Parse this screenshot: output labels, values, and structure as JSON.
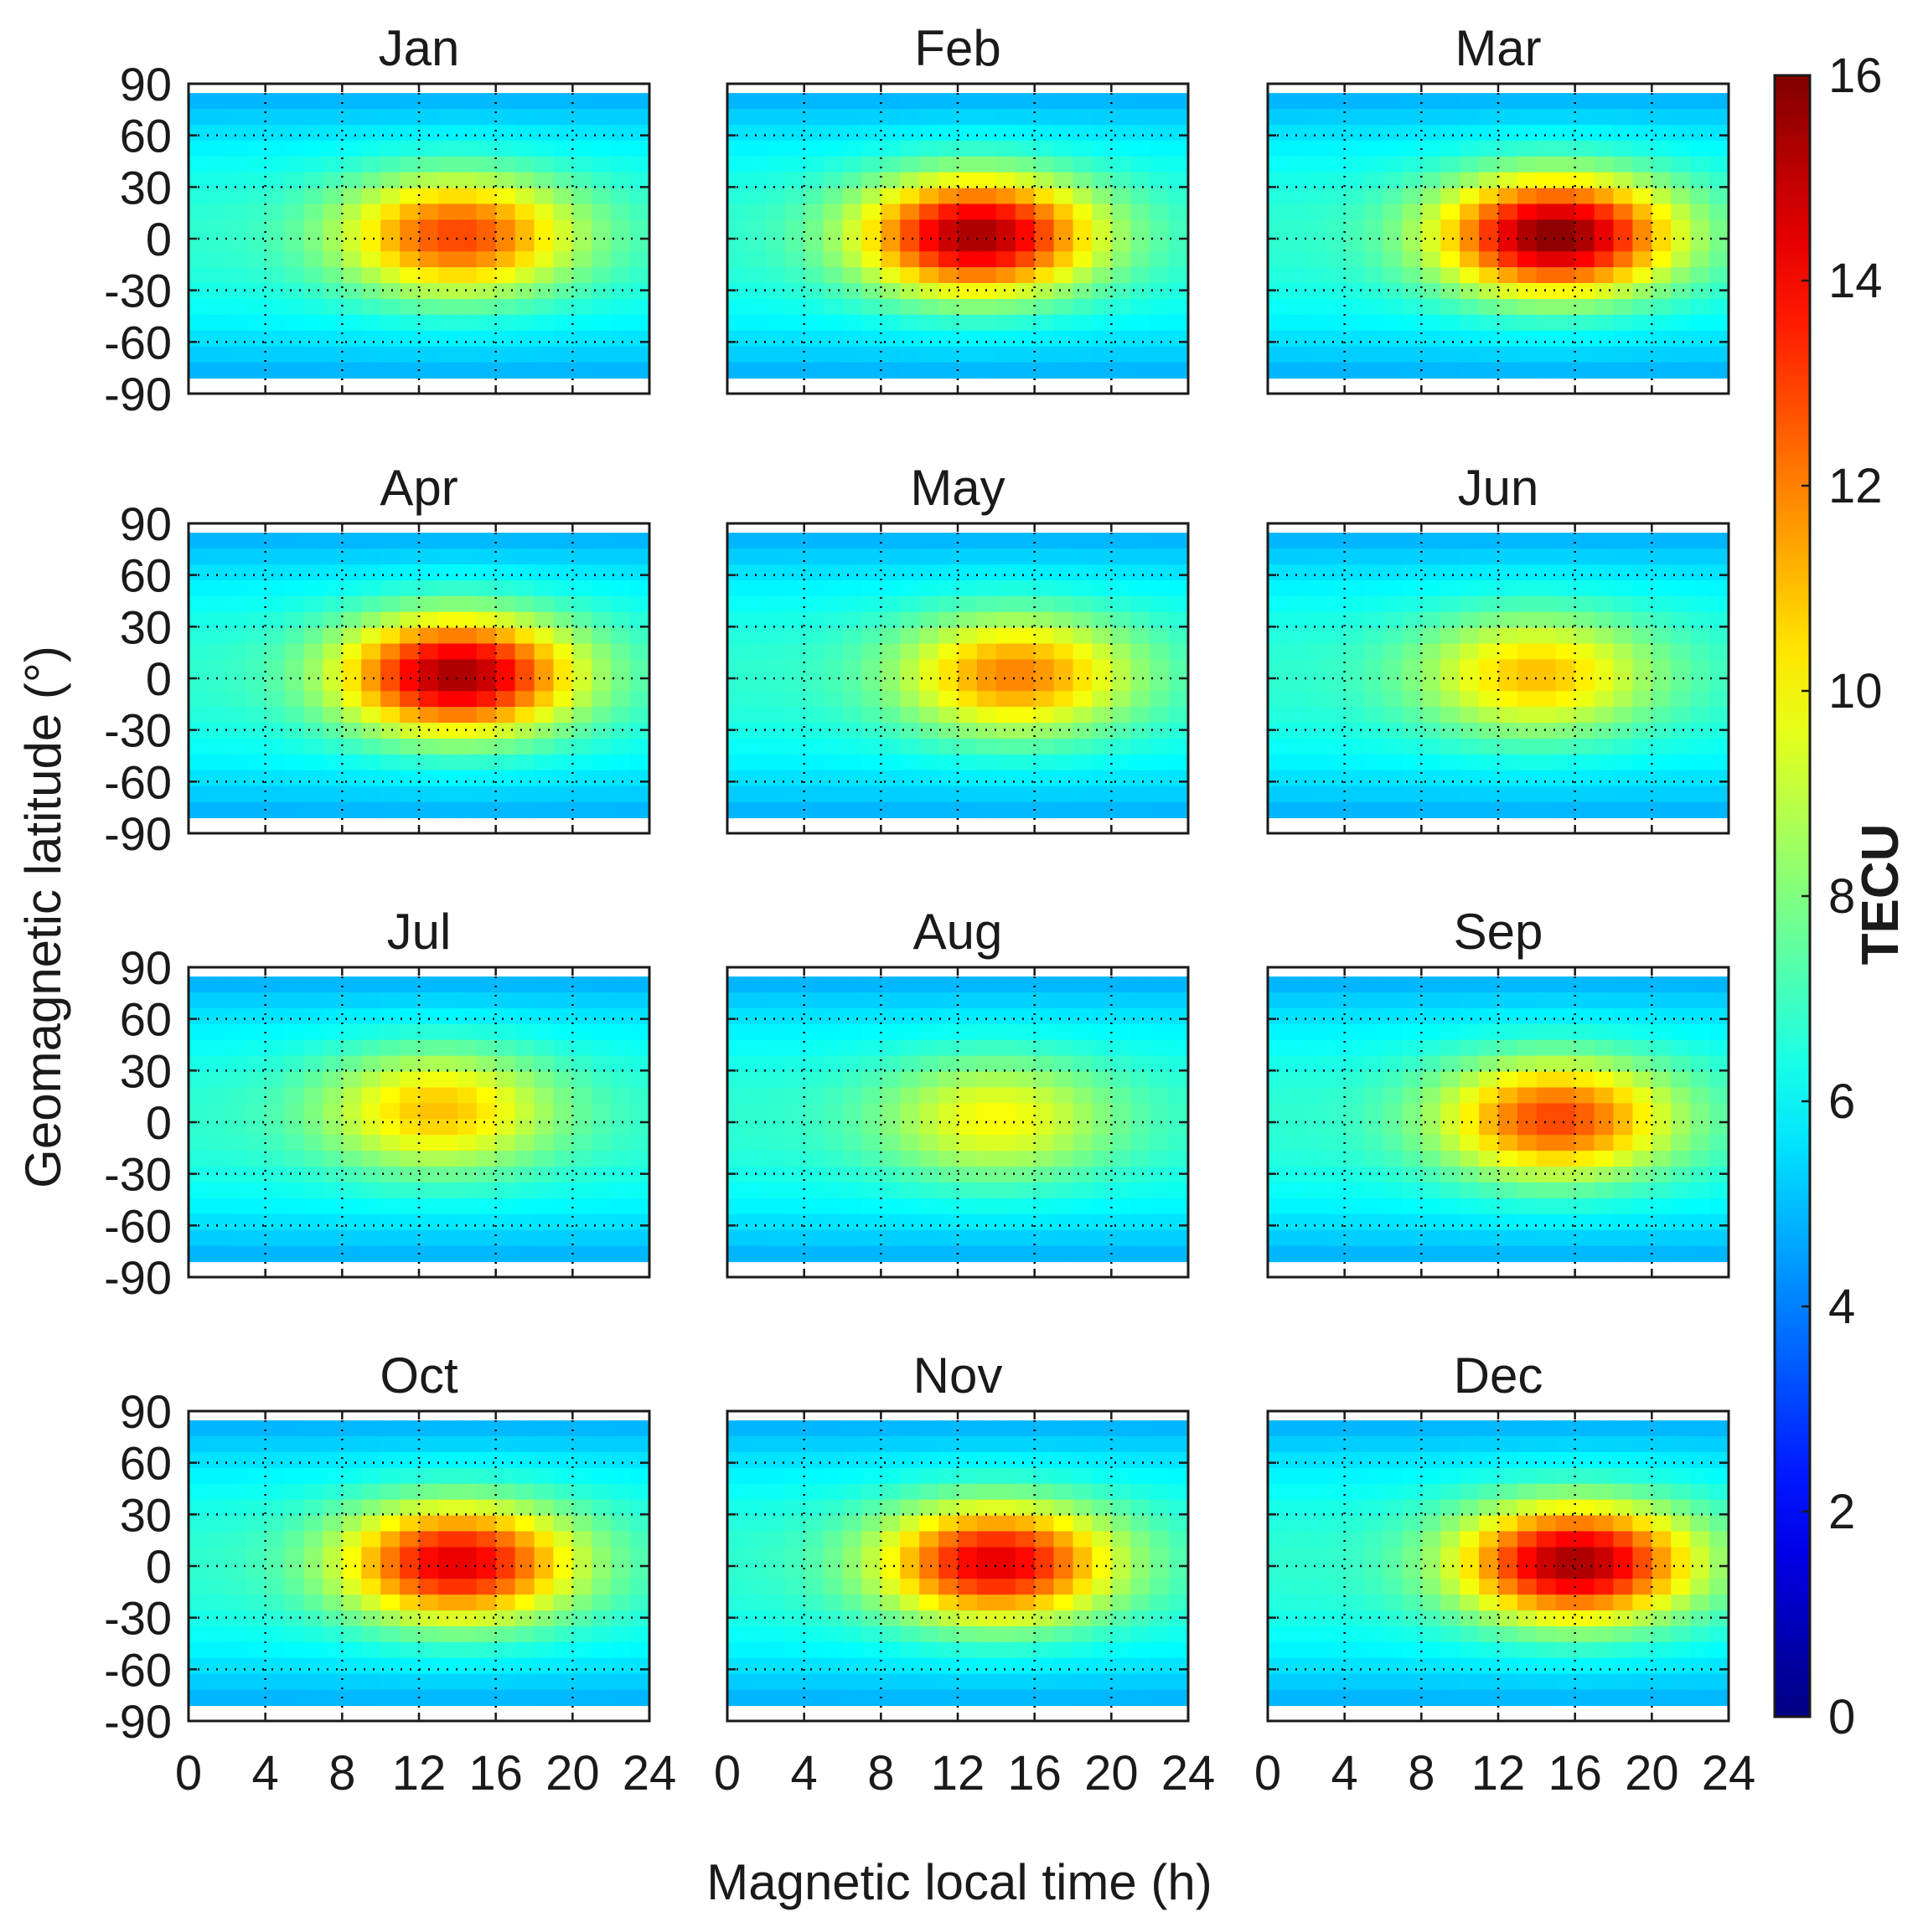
{
  "chart_data": {
    "type": "heatmap",
    "panels": [
      "Jan",
      "Feb",
      "Mar",
      "Apr",
      "May",
      "Jun",
      "Jul",
      "Aug",
      "Sep",
      "Oct",
      "Nov",
      "Dec"
    ],
    "xlabel": "Magnetic local time (h)",
    "ylabel": "Geomagnetic latitude (°)",
    "x_ticks": [
      "0",
      "4",
      "8",
      "12",
      "16",
      "20",
      "24"
    ],
    "y_ticks": [
      "90",
      "60",
      "30",
      "0",
      "-30",
      "-60",
      "-90"
    ],
    "xlim": [
      0,
      24
    ],
    "ylim": [
      -90,
      90
    ],
    "grid": true,
    "colorbar": {
      "label": "TECU",
      "ticks": [
        "0",
        "2",
        "4",
        "6",
        "8",
        "10",
        "12",
        "14",
        "16"
      ],
      "range": [
        0,
        16
      ],
      "colormap": "jet"
    },
    "peak_values": [
      {
        "month": "Jan",
        "peak_tecu": 13.0,
        "peak_mlt": 14,
        "peak_lat": 0
      },
      {
        "month": "Feb",
        "peak_tecu": 15.5,
        "peak_mlt": 13,
        "peak_lat": 0
      },
      {
        "month": "Mar",
        "peak_tecu": 16.0,
        "peak_mlt": 15,
        "peak_lat": 0
      },
      {
        "month": "Apr",
        "peak_tecu": 15.5,
        "peak_mlt": 14,
        "peak_lat": 0
      },
      {
        "month": "May",
        "peak_tecu": 12.0,
        "peak_mlt": 15,
        "peak_lat": 0
      },
      {
        "month": "Jun",
        "peak_tecu": 11.0,
        "peak_mlt": 14,
        "peak_lat": 0
      },
      {
        "month": "Jul",
        "peak_tecu": 11.0,
        "peak_mlt": 13,
        "peak_lat": 5
      },
      {
        "month": "Aug",
        "peak_tecu": 10.0,
        "peak_mlt": 14,
        "peak_lat": 0
      },
      {
        "month": "Sep",
        "peak_tecu": 13.0,
        "peak_mlt": 15,
        "peak_lat": 0
      },
      {
        "month": "Oct",
        "peak_tecu": 14.5,
        "peak_mlt": 14,
        "peak_lat": 0
      },
      {
        "month": "Nov",
        "peak_tecu": 14.5,
        "peak_mlt": 14,
        "peak_lat": 0
      },
      {
        "month": "Dec",
        "peak_tecu": 15.5,
        "peak_mlt": 16,
        "peak_lat": 0
      }
    ]
  },
  "colors": {
    "axis": "#1a1a1a",
    "grid": "#000000"
  }
}
